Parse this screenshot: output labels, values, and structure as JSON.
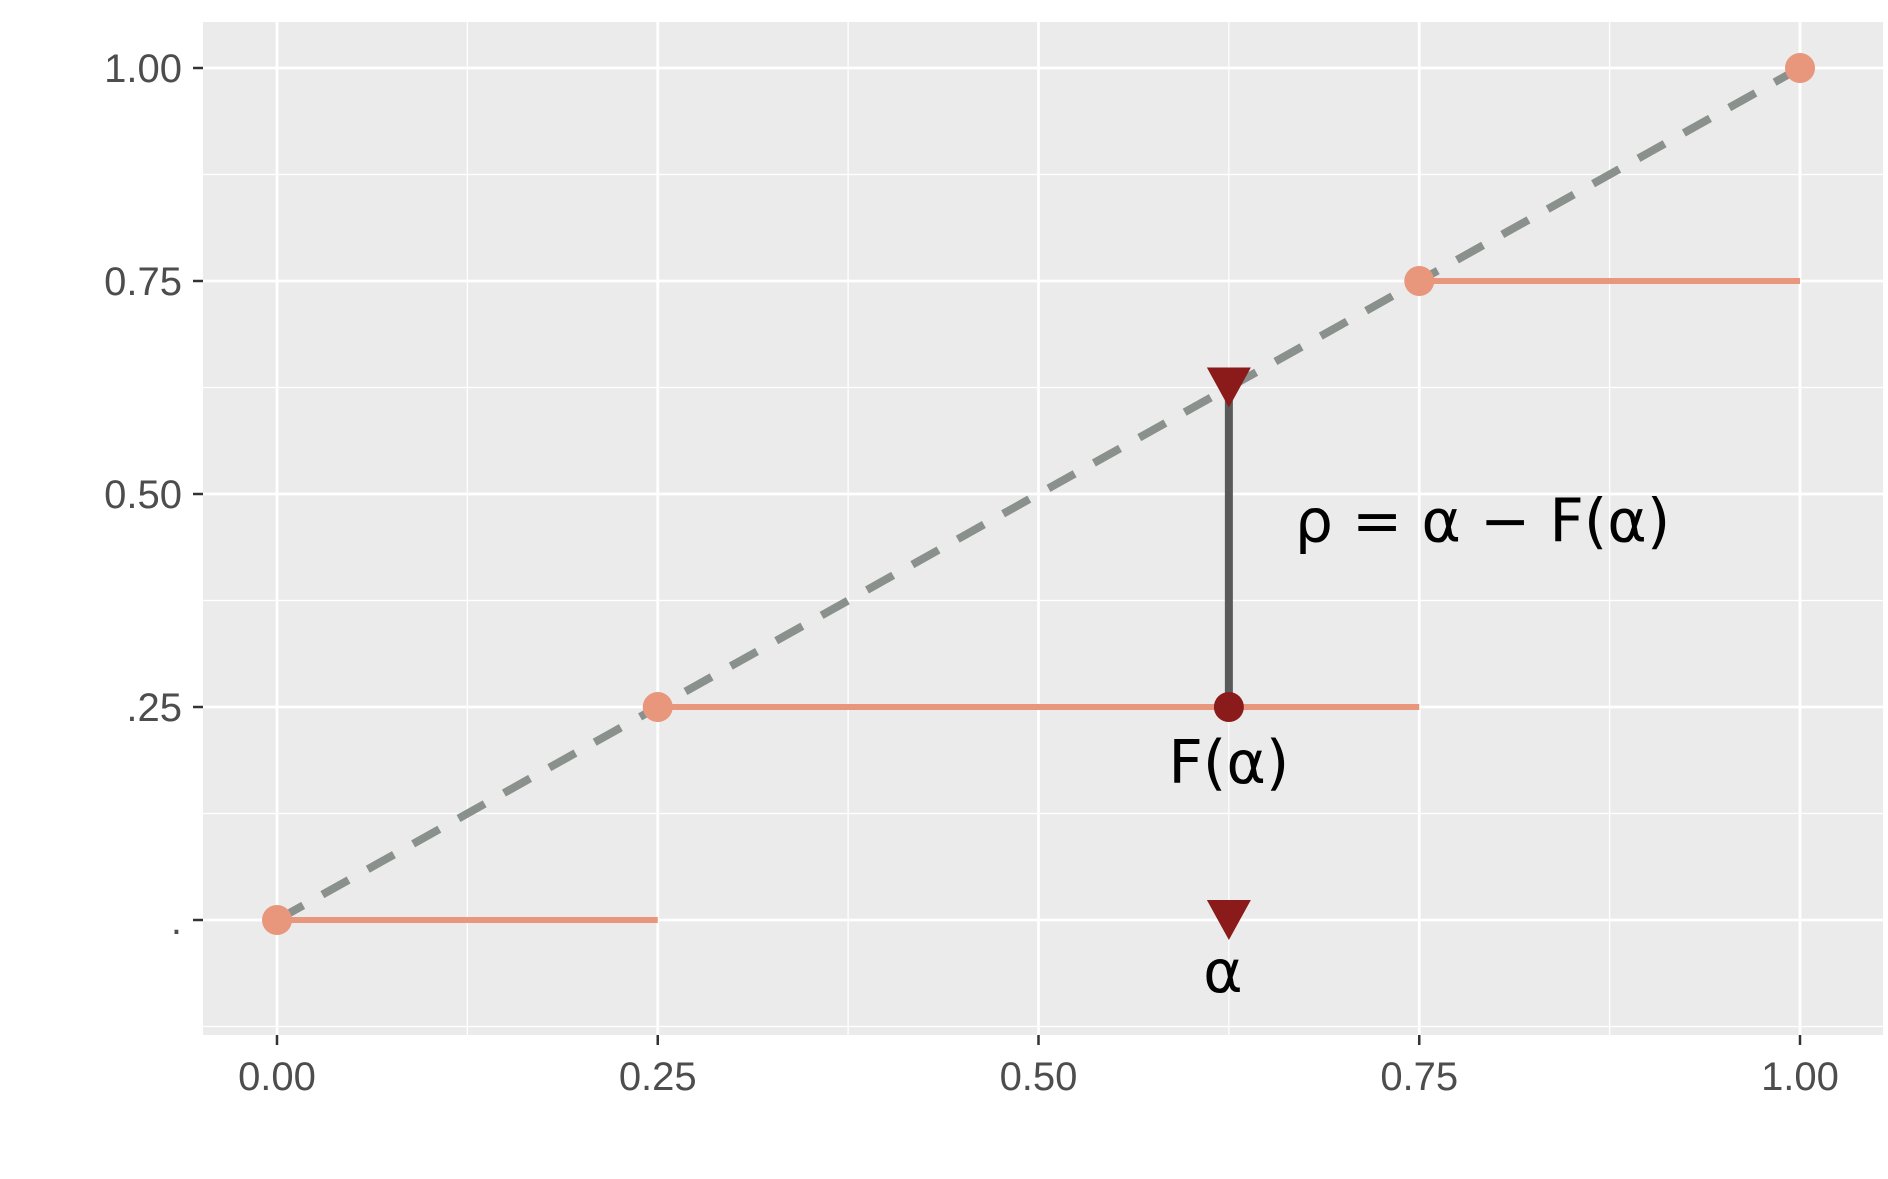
{
  "chart_data": {
    "type": "line",
    "title": "",
    "xlabel": "",
    "ylabel": "",
    "xlim": [
      -0.05,
      1.05
    ],
    "ylim": [
      -0.125,
      1.055
    ],
    "grid": true,
    "x_ticks": [
      {
        "value": 0,
        "label": "0.00"
      },
      {
        "value": 0.25,
        "label": "0.25"
      },
      {
        "value": 0.5,
        "label": "0.50"
      },
      {
        "value": 0.75,
        "label": "0.75"
      },
      {
        "value": 1,
        "label": "1.00"
      }
    ],
    "y_ticks": [
      {
        "value": 0,
        "label": "."
      },
      {
        "value": 0.25,
        "label": ".25"
      },
      {
        "value": 0.5,
        "label": "0.50"
      },
      {
        "value": 0.75,
        "label": "0.75"
      },
      {
        "value": 1,
        "label": "1.00"
      }
    ],
    "series": [
      {
        "kind": "diagonal-dashed",
        "color": "#8a918c",
        "x": [
          0,
          1
        ],
        "y": [
          0,
          1
        ]
      },
      {
        "kind": "step-segments",
        "color": "#e8977c",
        "segments": [
          {
            "x": [
              0,
              0.25
            ],
            "y": 0
          },
          {
            "x": [
              0.25,
              0.75
            ],
            "y": 0.25
          },
          {
            "x": [
              0.75,
              1
            ],
            "y": 0.75
          }
        ]
      },
      {
        "kind": "step-points",
        "color": "#e8977c",
        "x": [
          0,
          0.25,
          0.75,
          1
        ],
        "y": [
          0,
          0.25,
          0.75,
          1
        ]
      }
    ],
    "highlight": {
      "alpha": 0.625,
      "F_alpha": 0.25,
      "color": "#8b1a1a",
      "connector_color": "#5a5a5a"
    },
    "annotations": {
      "rho": {
        "text": "ρ = α − F(α)"
      },
      "F_alpha": {
        "text": "F(α)"
      },
      "alpha": {
        "text": "α"
      }
    }
  }
}
